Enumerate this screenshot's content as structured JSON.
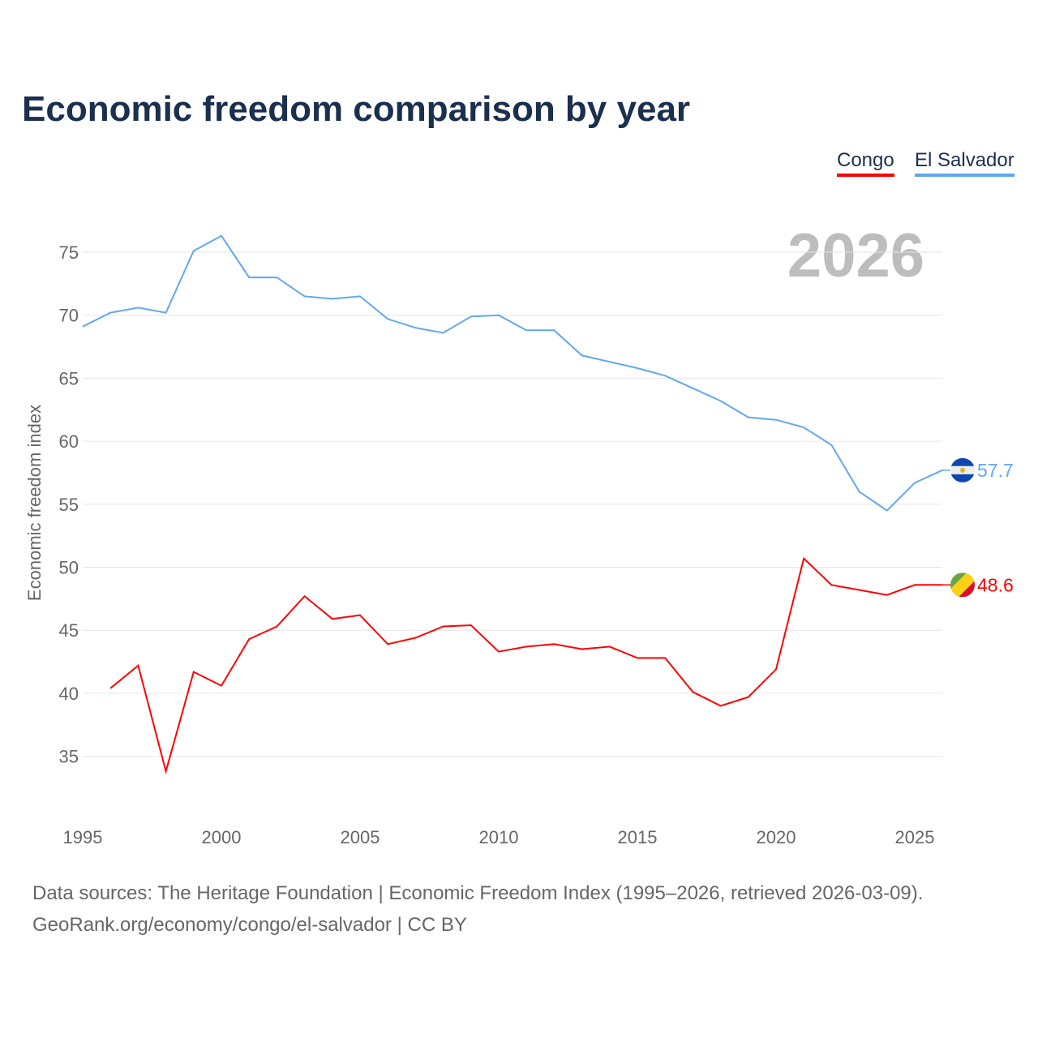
{
  "title": "Economic freedom comparison by year",
  "year_watermark": "2026",
  "footer": {
    "line1": "Data sources: The Heritage Foundation | Economic Freedom Index (1995–2026, retrieved 2026-03-09).",
    "line2": "GeoRank.org/economy/congo/el-salvador | CC BY"
  },
  "chart_data": {
    "type": "line",
    "title": "Economic freedom comparison by year",
    "xlabel": "",
    "ylabel": "Economic freedom index",
    "xlim": [
      1995,
      2026
    ],
    "ylim": [
      31,
      78
    ],
    "xticks": [
      "1995",
      "2000",
      "2005",
      "2010",
      "2015",
      "2020",
      "2025"
    ],
    "yticks": [
      "35",
      "40",
      "45",
      "50",
      "55",
      "60",
      "65",
      "70",
      "75"
    ],
    "grid": true,
    "legend_position": "top-right",
    "series": [
      {
        "name": "Congo",
        "color": "#ff0000",
        "end_label": "48.6",
        "flag": "congo-flag",
        "x": [
          1996,
          1997,
          1998,
          1999,
          2000,
          2001,
          2002,
          2003,
          2004,
          2005,
          2006,
          2007,
          2008,
          2009,
          2010,
          2011,
          2012,
          2013,
          2014,
          2015,
          2016,
          2017,
          2018,
          2019,
          2020,
          2021,
          2022,
          2023,
          2024,
          2025,
          2026
        ],
        "values": [
          40.4,
          42.2,
          33.8,
          41.7,
          40.6,
          44.3,
          45.3,
          47.7,
          45.9,
          46.2,
          43.9,
          44.4,
          45.3,
          45.4,
          43.3,
          43.7,
          43.9,
          43.5,
          43.7,
          42.8,
          42.8,
          40.1,
          39.0,
          39.7,
          41.9,
          50.7,
          48.6,
          48.2,
          47.8,
          48.6,
          48.6
        ]
      },
      {
        "name": "El Salvador",
        "color": "#5fa8ee",
        "end_label": "57.7",
        "flag": "el-salvador-flag",
        "x": [
          1995,
          1996,
          1997,
          1998,
          1999,
          2000,
          2001,
          2002,
          2003,
          2004,
          2005,
          2006,
          2007,
          2008,
          2009,
          2010,
          2011,
          2012,
          2013,
          2014,
          2015,
          2016,
          2017,
          2018,
          2019,
          2020,
          2021,
          2022,
          2023,
          2024,
          2025,
          2026
        ],
        "values": [
          69.1,
          70.2,
          70.6,
          70.2,
          75.1,
          76.3,
          73.0,
          73.0,
          71.5,
          71.3,
          71.5,
          69.7,
          69.0,
          68.6,
          69.9,
          70.0,
          68.8,
          68.8,
          66.8,
          66.3,
          65.8,
          65.2,
          64.2,
          63.2,
          61.9,
          61.7,
          61.1,
          59.7,
          56.0,
          54.5,
          56.7,
          57.7
        ]
      }
    ]
  }
}
